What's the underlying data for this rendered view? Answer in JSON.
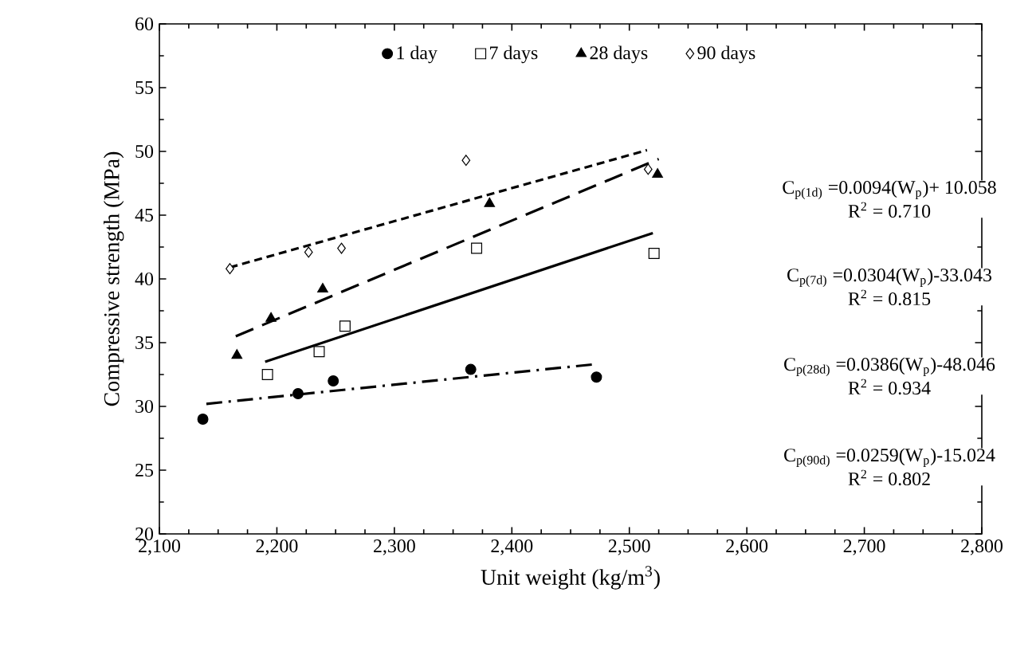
{
  "chart_data": {
    "type": "scatter",
    "xlabel": "Unit weight (kg/m$^{3}$)",
    "ylabel": "Compressive strength (MPa)",
    "xlim": [
      2100,
      2800
    ],
    "ylim": [
      20,
      60
    ],
    "xticks": [
      {
        "value": 2100,
        "label": "2,100"
      },
      {
        "value": 2200,
        "label": "2,200"
      },
      {
        "value": 2300,
        "label": "2,300"
      },
      {
        "value": 2400,
        "label": "2,400"
      },
      {
        "value": 2500,
        "label": "2,500"
      },
      {
        "value": 2600,
        "label": "2,600"
      },
      {
        "value": 2700,
        "label": "2,700"
      },
      {
        "value": 2800,
        "label": "2,800"
      }
    ],
    "yticks": [
      20,
      25,
      30,
      35,
      40,
      45,
      50,
      55,
      60
    ],
    "legend": "top",
    "grid": false,
    "series": [
      {
        "name": "1 day",
        "color": "#000000",
        "marker": "circle",
        "x": [
          2137,
          2218,
          2248,
          2365,
          2472
        ],
        "values": [
          29.0,
          31.0,
          32.0,
          32.9,
          32.3
        ]
      },
      {
        "name": "7 days",
        "color": "#000000",
        "marker": "square",
        "x": [
          2192,
          2236,
          2258,
          2370,
          2521
        ],
        "values": [
          32.5,
          34.3,
          36.3,
          42.4,
          42.0
        ]
      },
      {
        "name": "28 days",
        "color": "#000000",
        "marker": "triangle",
        "x": [
          2166,
          2195,
          2239,
          2381,
          2524
        ],
        "values": [
          34.0,
          36.9,
          39.2,
          45.9,
          48.2
        ]
      },
      {
        "name": "90 days",
        "color": "#000000",
        "marker": "diamond",
        "x": [
          2160,
          2227,
          2255,
          2361,
          2516
        ],
        "values": [
          40.8,
          42.1,
          42.4,
          49.3,
          48.6
        ]
      },
      {
        "type": "line",
        "color": "#000000",
        "line_style": "dashdot",
        "marker": "none",
        "x": [
          2140,
          2470
        ],
        "values": [
          30.2,
          33.3
        ]
      },
      {
        "type": "line",
        "color": "#000000",
        "line_style": "solid",
        "marker": "none",
        "x": [
          2190,
          2520
        ],
        "values": [
          33.5,
          43.6
        ]
      },
      {
        "type": "line",
        "color": "#000000",
        "line_style": "longdashed",
        "marker": "none",
        "x": [
          2165,
          2525
        ],
        "values": [
          35.5,
          49.4
        ]
      },
      {
        "type": "line",
        "color": "#000000",
        "line_style": "dashed",
        "marker": "none",
        "x": [
          2160,
          2515
        ],
        "values": [
          40.9,
          50.1
        ]
      }
    ],
    "annotations": [
      "C$_{p(1d)}$ =0.0094(W$_{p}$)+ 10.058",
      "R$^{2}$ = 0.710",
      "C$_{p(7d)}$ =0.0304(W$_{p}$)-33.043",
      "R$^{2}$ = 0.815",
      "C$_{p(28d)}$ =0.0386(W$_{p}$)-48.046",
      "R$^{2}$ = 0.934",
      "C$_{p(90d)}$ =0.0259(W$_{p}$)-15.024",
      "R$^{2}$ = 0.802"
    ]
  }
}
